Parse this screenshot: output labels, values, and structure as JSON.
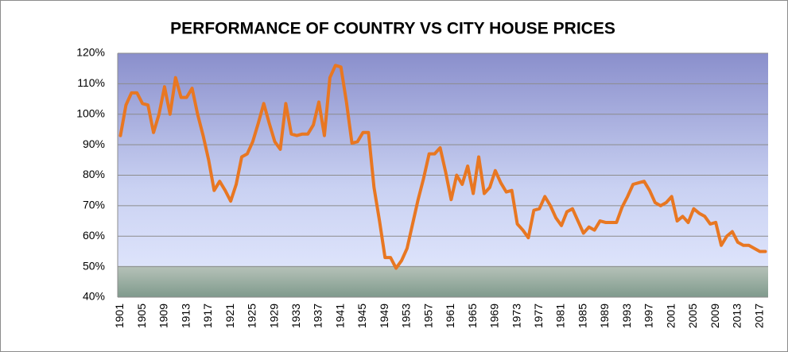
{
  "chart_data": {
    "type": "line",
    "title": "PERFORMANCE OF COUNTRY VS CITY HOUSE PRICES",
    "categories": [
      "1901",
      null,
      null,
      null,
      "1905",
      null,
      null,
      null,
      "1909",
      null,
      null,
      null,
      "1913",
      null,
      null,
      null,
      "1917",
      null,
      null,
      null,
      "1921",
      null,
      null,
      null,
      "1925",
      null,
      null,
      null,
      "1929",
      null,
      null,
      null,
      "1933",
      null,
      null,
      null,
      "1937",
      null,
      null,
      null,
      "1941",
      null,
      null,
      null,
      "1945",
      null,
      null,
      null,
      "1949",
      null,
      null,
      null,
      "1953",
      null,
      null,
      null,
      "1957",
      null,
      null,
      null,
      "1961",
      null,
      null,
      null,
      "1965",
      null,
      null,
      null,
      "1969",
      null,
      null,
      null,
      "1973",
      null,
      null,
      null,
      "1977",
      null,
      null,
      null,
      "1981",
      null,
      null,
      null,
      "1985",
      null,
      null,
      null,
      "1989",
      null,
      null,
      null,
      "1993",
      null,
      null,
      null,
      "1997",
      null,
      null,
      null,
      "2001",
      null,
      null,
      null,
      "2005",
      null,
      null,
      null,
      "2009",
      null,
      null,
      null,
      "2013",
      null,
      null,
      null,
      "2017",
      null
    ],
    "values": [
      93,
      103,
      107,
      107,
      103.5,
      103,
      94,
      100,
      109,
      100,
      112,
      105.5,
      105.5,
      108.5,
      100,
      93,
      85,
      75,
      78,
      75,
      71.5,
      77,
      86,
      87,
      91,
      97,
      103.5,
      97,
      91,
      88.5,
      103.5,
      93.5,
      93,
      93.5,
      93.5,
      96.5,
      104,
      93,
      112,
      116,
      115.5,
      104,
      90.5,
      91,
      94,
      94,
      76,
      65,
      53,
      53,
      49.5,
      52,
      56,
      64,
      72,
      79,
      87,
      87,
      89,
      81,
      72,
      80,
      77,
      83,
      74,
      86,
      74,
      76,
      81.5,
      77.5,
      74.5,
      75,
      64,
      62,
      59.5,
      68.5,
      69,
      73,
      70,
      66,
      63.5,
      68,
      69,
      65,
      61,
      63,
      62,
      65,
      64.5,
      64.5,
      64.5,
      69.5,
      73,
      77,
      77.5,
      78,
      75,
      71,
      70,
      71,
      73,
      65,
      66.5,
      64.5,
      69,
      67.5,
      66.5,
      64,
      64.5,
      57,
      60,
      61.5,
      58,
      57,
      57,
      56,
      55,
      55
    ],
    "color": "#e87722",
    "ylim": [
      40,
      120
    ],
    "yticks": [
      {
        "value": 40,
        "label": "40%"
      },
      {
        "value": 50,
        "label": "50%"
      },
      {
        "value": 60,
        "label": "60%"
      },
      {
        "value": 70,
        "label": "70%"
      },
      {
        "value": 80,
        "label": "80%"
      },
      {
        "value": 90,
        "label": "90%"
      },
      {
        "value": 100,
        "label": "100%"
      },
      {
        "value": 110,
        "label": "110%"
      },
      {
        "value": 120,
        "label": "120%"
      }
    ],
    "grid": true
  }
}
